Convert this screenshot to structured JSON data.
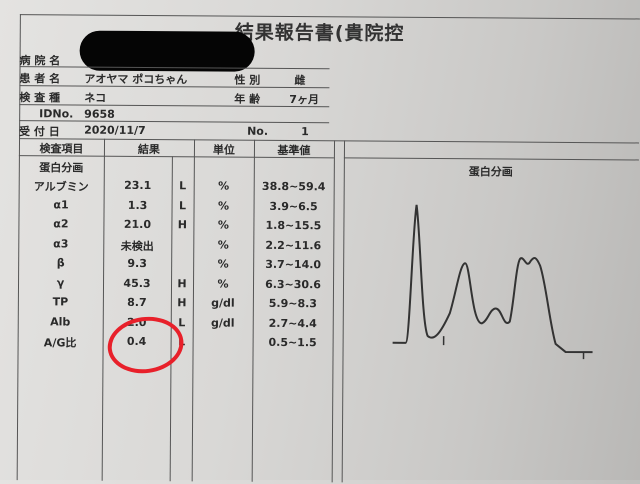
{
  "title": "結果報告書(貴院控",
  "header": {
    "hospital_label": "病 院 名",
    "patient_label": "患 者 名",
    "patient_name": "アオヤマ ポコちゃん",
    "sex_label": "性 別",
    "sex": "雌",
    "species_label": "検 査 種",
    "species": "ネコ",
    "age_label": "年 齢",
    "age": "7ヶ月",
    "id_label": "IDNo.",
    "id": "9658",
    "date_label": "受 付 日",
    "date": "2020/11/7",
    "no_label": "No.",
    "no": "1"
  },
  "table": {
    "headers": [
      "検査項目",
      "結果",
      "単位",
      "基準値"
    ],
    "section": "蛋白分画",
    "rows": [
      {
        "item": "アルブミン",
        "result": "23.1",
        "flag": "L",
        "unit": "%",
        "range": "38.8~59.4"
      },
      {
        "item": "α1",
        "result": "1.3",
        "flag": "L",
        "unit": "%",
        "range": "3.9~6.5"
      },
      {
        "item": "α2",
        "result": "21.0",
        "flag": "H",
        "unit": "%",
        "range": "1.8~15.5"
      },
      {
        "item": "α3",
        "result": "未検出",
        "flag": "",
        "unit": "%",
        "range": "2.2~11.6"
      },
      {
        "item": "β",
        "result": "9.3",
        "flag": "",
        "unit": "%",
        "range": "3.7~14.0"
      },
      {
        "item": "γ",
        "result": "45.3",
        "flag": "H",
        "unit": "%",
        "range": "6.3~30.6"
      },
      {
        "item": "TP",
        "result": "8.7",
        "flag": "H",
        "unit": "g/dl",
        "range": "5.9~8.3"
      },
      {
        "item": "Alb",
        "result": "2.0",
        "flag": "L",
        "unit": "g/dl",
        "range": "2.7~4.4"
      },
      {
        "item": "A/G比",
        "result": "0.4",
        "flag": "L",
        "unit": "",
        "range": "0.5~1.5"
      }
    ]
  },
  "chart": {
    "title": "蛋白分画"
  },
  "highlight_color": "#e8202a"
}
